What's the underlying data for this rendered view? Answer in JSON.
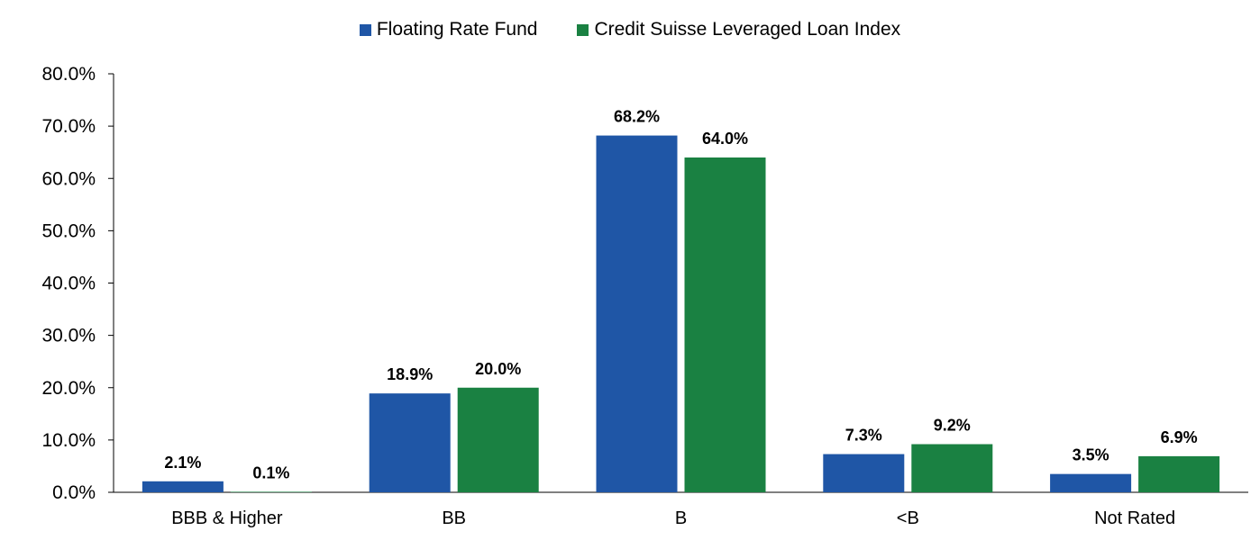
{
  "chart_data": {
    "type": "bar",
    "categories": [
      "BBB & Higher",
      "BB",
      "B",
      "<B",
      "Not Rated"
    ],
    "series": [
      {
        "name": "Floating Rate Fund",
        "color": "#1f56a6",
        "values": [
          2.1,
          18.9,
          68.2,
          7.3,
          3.5
        ],
        "labels": [
          "2.1%",
          "18.9%",
          "68.2%",
          "7.3%",
          "3.5%"
        ]
      },
      {
        "name": "Credit Suisse Leveraged Loan Index",
        "color": "#1a8142",
        "values": [
          0.1,
          20.0,
          64.0,
          9.2,
          6.9
        ],
        "labels": [
          "0.1%",
          "20.0%",
          "64.0%",
          "9.2%",
          "6.9%"
        ]
      }
    ],
    "yticks": [
      "0.0%",
      "10.0%",
      "20.0%",
      "30.0%",
      "40.0%",
      "50.0%",
      "60.0%",
      "70.0%",
      "80.0%"
    ],
    "ylim": [
      0,
      80
    ],
    "legend_position": "top-center",
    "grid": false
  }
}
